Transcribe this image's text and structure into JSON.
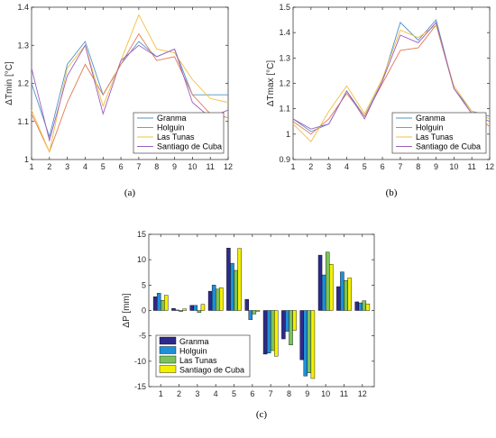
{
  "chart_data": [
    {
      "type": "line",
      "caption": "(a)",
      "ylabel": "ΔTmin [°C]",
      "x": [
        1,
        2,
        3,
        4,
        5,
        6,
        7,
        8,
        9,
        10,
        11,
        12
      ],
      "xlim": [
        1,
        12
      ],
      "ylim": [
        1,
        1.4
      ],
      "xticks": [
        "1",
        "2",
        "3",
        "4",
        "5",
        "6",
        "7",
        "8",
        "9",
        "10",
        "11",
        "12"
      ],
      "yticks": [
        "1",
        "1.1",
        "1.2",
        "1.3",
        "1.4"
      ],
      "legend": "bottom-right",
      "series": [
        {
          "name": "Granma",
          "color": "#4d94c8",
          "values": [
            1.2,
            1.06,
            1.25,
            1.31,
            1.17,
            1.25,
            1.31,
            1.27,
            1.29,
            1.17,
            1.17,
            1.17
          ]
        },
        {
          "name": "Holguin",
          "color": "#e07b54",
          "values": [
            1.12,
            1.02,
            1.15,
            1.25,
            1.17,
            1.25,
            1.33,
            1.26,
            1.27,
            1.17,
            1.12,
            1.11
          ]
        },
        {
          "name": "Las Tunas",
          "color": "#f0c040",
          "values": [
            1.13,
            1.02,
            1.24,
            1.3,
            1.14,
            1.26,
            1.38,
            1.29,
            1.28,
            1.21,
            1.16,
            1.15
          ]
        },
        {
          "name": "Santiago de Cuba",
          "color": "#9b5fc0",
          "values": [
            1.24,
            1.05,
            1.22,
            1.3,
            1.12,
            1.26,
            1.3,
            1.27,
            1.29,
            1.15,
            1.11,
            1.13
          ]
        }
      ]
    },
    {
      "type": "line",
      "caption": "(b)",
      "ylabel": "ΔTmax [°C]",
      "x": [
        1,
        2,
        3,
        4,
        5,
        6,
        7,
        8,
        9,
        10,
        11,
        12
      ],
      "xlim": [
        1,
        12
      ],
      "ylim": [
        0.9,
        1.5
      ],
      "xticks": [
        "1",
        "2",
        "3",
        "4",
        "5",
        "6",
        "7",
        "8",
        "9",
        "10",
        "11",
        "12"
      ],
      "yticks": [
        "0.9",
        "1",
        "1.1",
        "1.2",
        "1.3",
        "1.4",
        "1.5"
      ],
      "legend": "bottom-right",
      "series": [
        {
          "name": "Granma",
          "color": "#4d94c8",
          "values": [
            1.06,
            1.01,
            1.04,
            1.17,
            1.07,
            1.21,
            1.44,
            1.37,
            1.45,
            1.18,
            1.09,
            1.07
          ]
        },
        {
          "name": "Holguin",
          "color": "#e07b54",
          "values": [
            1.05,
            1.0,
            1.06,
            1.16,
            1.07,
            1.2,
            1.33,
            1.34,
            1.43,
            1.18,
            1.08,
            1.03
          ]
        },
        {
          "name": "Las Tunas",
          "color": "#f0c040",
          "values": [
            1.04,
            0.97,
            1.09,
            1.19,
            1.08,
            1.22,
            1.41,
            1.38,
            1.43,
            1.19,
            1.09,
            1.06
          ]
        },
        {
          "name": "Santiago de Cuba",
          "color": "#9b5fc0",
          "values": [
            1.06,
            1.02,
            1.04,
            1.17,
            1.06,
            1.21,
            1.39,
            1.36,
            1.44,
            1.18,
            1.08,
            1.05
          ]
        }
      ]
    },
    {
      "type": "bar",
      "caption": "(c)",
      "ylabel": "ΔP [mm]",
      "categories": [
        "1",
        "2",
        "3",
        "4",
        "5",
        "6",
        "7",
        "8",
        "9",
        "10",
        "11",
        "12"
      ],
      "ylim": [
        -15,
        15
      ],
      "yticks": [
        "-15",
        "-10",
        "-5",
        "0",
        "5",
        "10",
        "15"
      ],
      "legend": "bottom-left",
      "series": [
        {
          "name": "Granma",
          "color": "#2e2a8c",
          "values": [
            2.7,
            0.4,
            1.0,
            3.8,
            12.3,
            2.2,
            -8.6,
            -5.6,
            -9.7,
            10.9,
            4.7,
            1.7
          ]
        },
        {
          "name": "Holguin",
          "color": "#1f8fd6",
          "values": [
            3.4,
            0.1,
            1.0,
            5.0,
            9.3,
            -1.8,
            -8.4,
            -4.1,
            -12.9,
            7.0,
            7.6,
            1.5
          ]
        },
        {
          "name": "Las Tunas",
          "color": "#7cc25c",
          "values": [
            2.0,
            -0.2,
            -0.4,
            4.2,
            7.9,
            -0.7,
            -7.9,
            -6.8,
            -12.3,
            11.5,
            5.9,
            1.9
          ]
        },
        {
          "name": "Santiago de Cuba",
          "color": "#f4f000",
          "values": [
            3.0,
            0.3,
            1.2,
            4.5,
            12.2,
            -0.2,
            -9.0,
            -3.9,
            -13.4,
            9.1,
            6.4,
            1.3
          ]
        }
      ]
    }
  ]
}
